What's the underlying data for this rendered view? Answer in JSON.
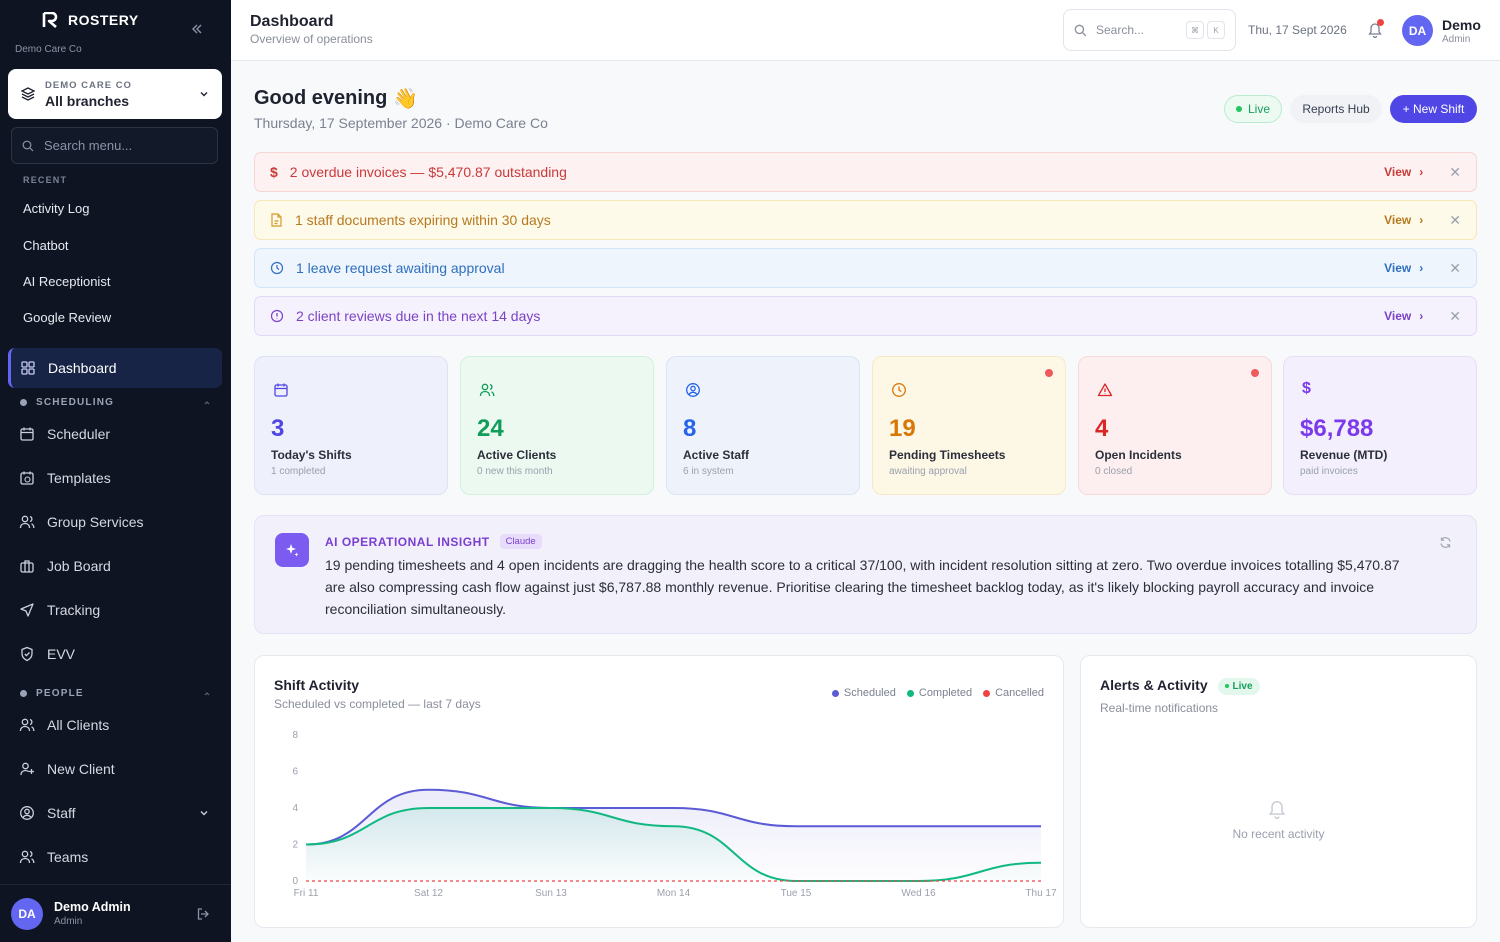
{
  "app": {
    "name": "ROSTERY",
    "org": "Demo Care Co"
  },
  "branch": {
    "label": "DEMO CARE CO",
    "value": "All branches"
  },
  "sidebar_search": {
    "placeholder": "Search menu..."
  },
  "recent": {
    "label": "RECENT",
    "items": [
      "Activity Log",
      "Chatbot",
      "AI Receptionist",
      "Google Review"
    ]
  },
  "nav": {
    "dashboard": "Dashboard",
    "scheduling_label": "SCHEDULING",
    "scheduling": [
      "Scheduler",
      "Templates",
      "Group Services",
      "Job Board",
      "Tracking",
      "EVV"
    ],
    "people_label": "PEOPLE",
    "people": [
      "All Clients",
      "New Client",
      "Staff",
      "Teams"
    ]
  },
  "user": {
    "initials": "DA",
    "name": "Demo Admin",
    "role": "Admin"
  },
  "topbar": {
    "title": "Dashboard",
    "subtitle": "Overview of operations",
    "search_placeholder": "Search...",
    "kbd1": "⌘",
    "kbd2": "K",
    "date": "Thu, 17 Sept 2026",
    "user_first": "Demo",
    "user_role": "Admin"
  },
  "greeting": {
    "title": "Good evening",
    "emoji": "👋",
    "subtitle": "Thursday, 17 September 2026 · Demo Care Co"
  },
  "actions": {
    "live": "Live",
    "reports": "Reports Hub",
    "new_shift": "+ New Shift"
  },
  "alerts": [
    {
      "text": "2 overdue invoices — $5,470.87 outstanding",
      "view": "View",
      "color": "#c93a3a"
    },
    {
      "text": "1 staff documents expiring within 30 days",
      "view": "View",
      "color": "#b7791f"
    },
    {
      "text": "1 leave request awaiting approval",
      "view": "View",
      "color": "#2f6fbf"
    },
    {
      "text": "2 client reviews due in the next 14 days",
      "view": "View",
      "color": "#7a43c6"
    }
  ],
  "stats": [
    {
      "value": "3",
      "label": "Today's Shifts",
      "sub": "1 completed",
      "icon": "calendar-icon",
      "color": "#4f46e5"
    },
    {
      "value": "24",
      "label": "Active Clients",
      "sub": "0 new this month",
      "icon": "users-icon",
      "color": "#0f9d58"
    },
    {
      "value": "8",
      "label": "Active Staff",
      "sub": "6 in system",
      "icon": "user-circle-icon",
      "color": "#2563eb"
    },
    {
      "value": "19",
      "label": "Pending Timesheets",
      "sub": "awaiting approval",
      "icon": "clock-icon",
      "color": "#d97706"
    },
    {
      "value": "4",
      "label": "Open Incidents",
      "sub": "0 closed",
      "icon": "warning-icon",
      "color": "#dc2626"
    },
    {
      "value": "$6,788",
      "label": "Revenue (MTD)",
      "sub": "paid invoices",
      "icon": "dollar-icon",
      "color": "#7c3aed"
    }
  ],
  "insight": {
    "title": "AI OPERATIONAL INSIGHT",
    "tag": "Claude",
    "text": "19 pending timesheets and 4 open incidents are dragging the health score to a critical 37/100, with incident resolution sitting at zero. Two overdue invoices totalling $5,470.87 are also compressing cash flow against just $6,787.88 monthly revenue. Prioritise clearing the timesheet backlog today, as it's likely blocking payroll accuracy and invoice reconciliation simultaneously."
  },
  "shift_card": {
    "title": "Shift Activity",
    "subtitle": "Scheduled vs completed — last 7 days"
  },
  "chart_data": {
    "type": "area",
    "categories": [
      "Fri 11",
      "Sat 12",
      "Sun 13",
      "Mon 14",
      "Tue 15",
      "Wed 16",
      "Thu 17"
    ],
    "series": [
      {
        "name": "Scheduled",
        "values": [
          2,
          5,
          4,
          4,
          3,
          3,
          3
        ],
        "color": "#5b5bd6"
      },
      {
        "name": "Completed",
        "values": [
          2,
          4,
          4,
          3,
          0,
          0,
          1
        ],
        "color": "#10b981"
      },
      {
        "name": "Cancelled",
        "values": [
          0,
          0,
          0,
          0,
          0,
          0,
          0
        ],
        "color": "#ef4444"
      }
    ],
    "yticks": [
      "0",
      "2",
      "4",
      "6",
      "8"
    ],
    "ylim": [
      0,
      8
    ],
    "grid": false,
    "legend": "top-right"
  },
  "activity_card": {
    "title": "Alerts & Activity",
    "live": "Live",
    "subtitle": "Real-time notifications",
    "empty": "No recent activity"
  }
}
